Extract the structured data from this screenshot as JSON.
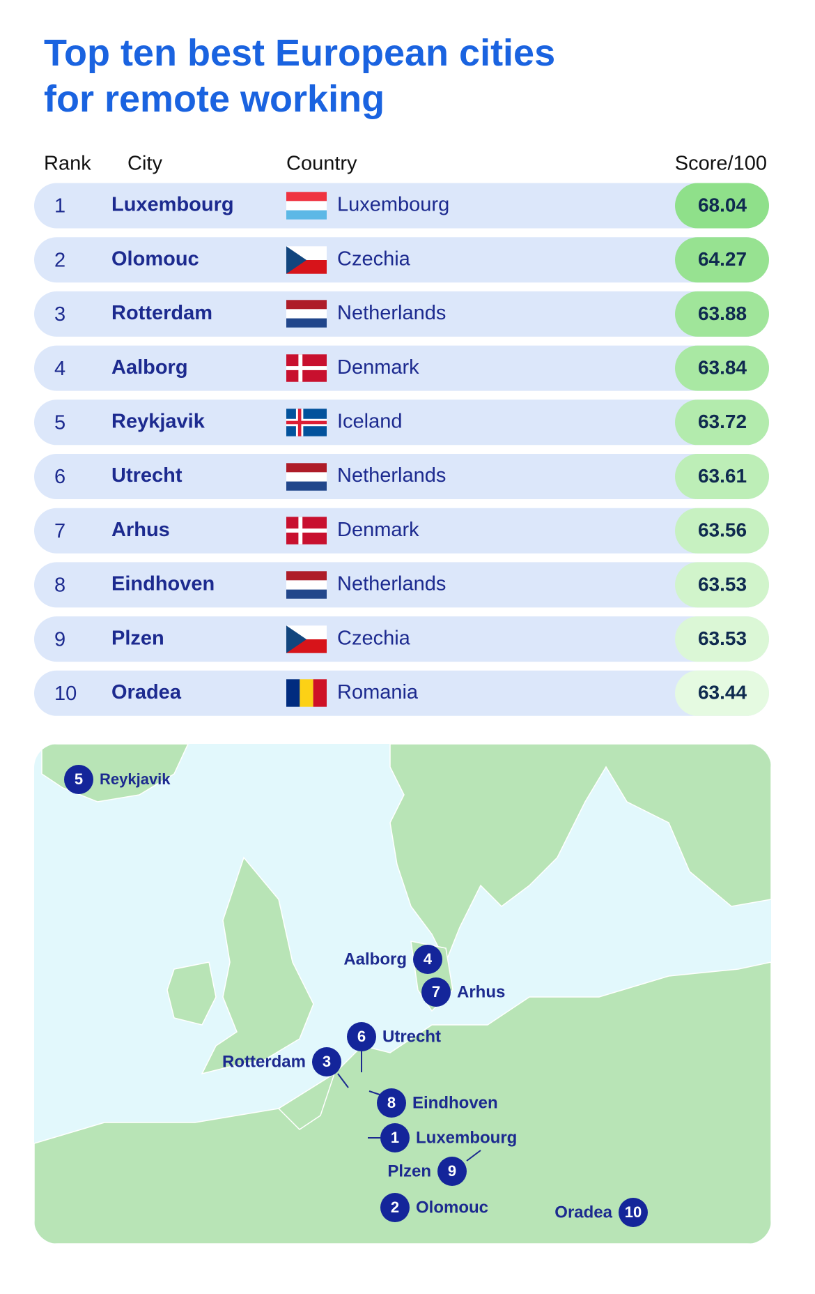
{
  "header": {
    "title_line1": "Top ten best European cities",
    "title_line2": "for remote working"
  },
  "table": {
    "headers": [
      "Rank",
      "City",
      "Country",
      "Score/100"
    ],
    "rows": [
      [
        "1",
        "Luxembourg",
        "Luxembourg",
        "68.04"
      ],
      [
        "2",
        "Olomouc",
        "Czechia",
        "64.27"
      ],
      [
        "3",
        "Rotterdam",
        "Netherlands",
        "63.88"
      ],
      [
        "4",
        "Aalborg",
        "Denmark",
        "63.84"
      ],
      [
        "5",
        "Reykjavik",
        "Iceland",
        "63.72"
      ],
      [
        "6",
        "Utrecht",
        "Netherlands",
        "63.61"
      ],
      [
        "7",
        "Arhus",
        "Denmark",
        "63.56"
      ],
      [
        "8",
        "Eindhoven",
        "Netherlands",
        "63.53"
      ],
      [
        "9",
        "Plzen",
        "Czechia",
        "63.53"
      ],
      [
        "10",
        "Oradea",
        "Romania",
        "63.44"
      ]
    ]
  },
  "map": {
    "markers": [
      {
        "rank": "5",
        "city": "Reykjavik"
      },
      {
        "rank": "4",
        "city": "Aalborg"
      },
      {
        "rank": "7",
        "city": "Arhus"
      },
      {
        "rank": "6",
        "city": "Utrecht"
      },
      {
        "rank": "3",
        "city": "Rotterdam"
      },
      {
        "rank": "8",
        "city": "Eindhoven"
      },
      {
        "rank": "1",
        "city": "Luxembourg"
      },
      {
        "rank": "9",
        "city": "Plzen"
      },
      {
        "rank": "2",
        "city": "Olomouc"
      },
      {
        "rank": "10",
        "city": "Oradea"
      }
    ]
  }
}
